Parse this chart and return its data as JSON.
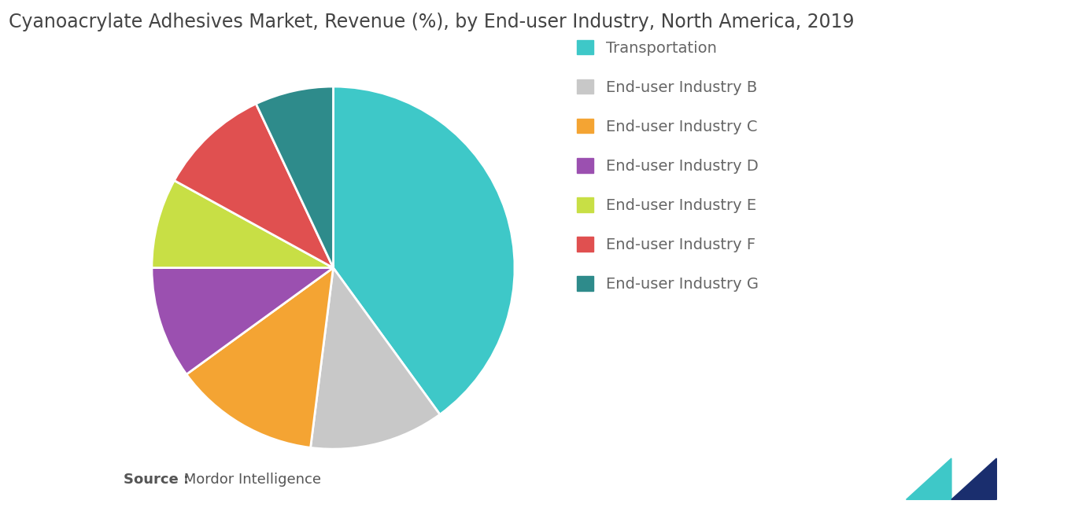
{
  "title": "Cyanoacrylate Adhesives Market, Revenue (%), by End-user Industry, North America, 2019",
  "labels": [
    "Transportation",
    "End-user Industry B",
    "End-user Industry C",
    "End-user Industry D",
    "End-user Industry E",
    "End-user Industry F",
    "End-user Industry G"
  ],
  "values": [
    40,
    12,
    13,
    10,
    8,
    10,
    7
  ],
  "colors": [
    "#3ec8c8",
    "#c8c8c8",
    "#f4a433",
    "#9b50b0",
    "#c8df45",
    "#e05050",
    "#2e8b8b"
  ],
  "startangle": 90,
  "counterclock": false,
  "source_bold": "Source :",
  "source_normal": " Mordor Intelligence",
  "background_color": "#ffffff",
  "title_fontsize": 17,
  "legend_fontsize": 14,
  "source_fontsize": 13,
  "edge_color": "white",
  "edge_linewidth": 2.0,
  "logo_teal": "#3ec8c8",
  "logo_navy": "#1a2e6e"
}
